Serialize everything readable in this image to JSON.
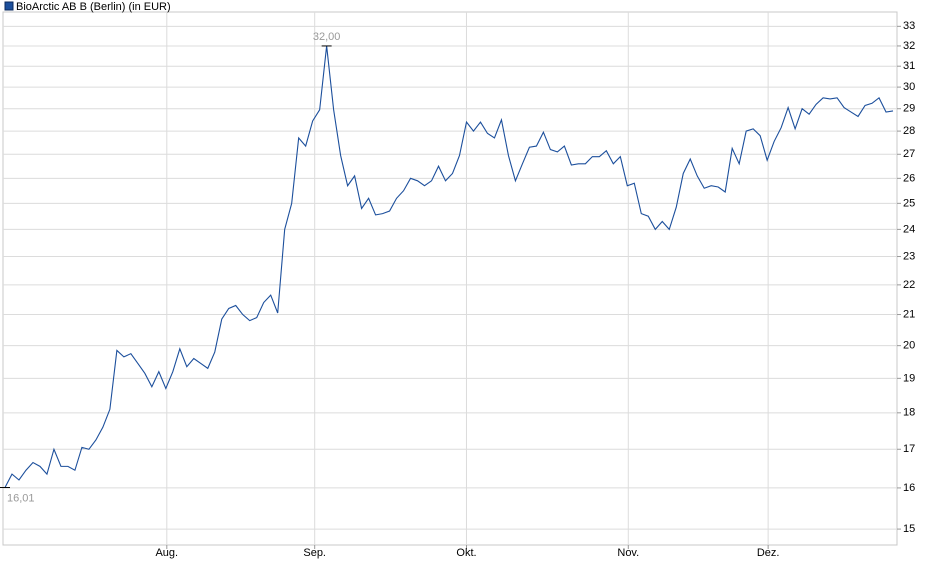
{
  "chart_data": {
    "type": "line",
    "series": [
      {
        "name": "BioArctic AB B (Berlin) (in EUR)",
        "color": "#1c4f9c",
        "values": [
          16.01,
          16.35,
          16.2,
          16.45,
          16.65,
          16.55,
          16.35,
          17.0,
          16.55,
          16.55,
          16.45,
          17.05,
          17.0,
          17.25,
          17.6,
          18.1,
          19.85,
          19.65,
          19.75,
          19.45,
          19.15,
          18.75,
          19.2,
          18.7,
          19.2,
          19.9,
          19.35,
          19.6,
          19.45,
          19.3,
          19.8,
          20.85,
          21.2,
          21.3,
          21.0,
          20.8,
          20.9,
          21.4,
          21.65,
          21.05,
          24.0,
          25.0,
          27.7,
          27.35,
          28.45,
          28.95,
          32.0,
          28.95,
          26.95,
          25.7,
          26.1,
          24.8,
          25.2,
          24.55,
          24.6,
          24.7,
          25.2,
          25.5,
          26.0,
          25.9,
          25.7,
          25.9,
          26.5,
          25.9,
          26.2,
          26.95,
          28.4,
          28.0,
          28.4,
          27.9,
          27.7,
          28.5,
          26.95,
          25.9,
          26.6,
          27.3,
          27.35,
          27.95,
          27.2,
          27.1,
          27.35,
          26.55,
          26.6,
          26.6,
          26.9,
          26.9,
          27.15,
          26.6,
          26.9,
          25.7,
          25.8,
          24.6,
          24.5,
          24.0,
          24.3,
          24.0,
          24.85,
          26.2,
          26.8,
          26.1,
          25.6,
          25.7,
          25.65,
          25.45,
          27.25,
          26.6,
          28.0,
          28.1,
          27.8,
          26.75,
          27.55,
          28.15,
          29.05,
          28.1,
          29.0,
          28.75,
          29.2,
          29.5,
          29.45,
          29.5,
          29.05,
          28.85,
          28.65,
          29.15,
          29.25,
          29.5,
          28.85,
          28.9
        ]
      }
    ],
    "x": [
      0,
      1,
      2,
      3,
      4,
      5,
      6,
      7,
      8,
      9,
      10,
      11,
      12,
      13,
      14,
      15,
      16,
      17,
      18,
      19,
      20,
      21,
      22,
      23,
      24,
      25,
      26,
      27,
      28,
      29,
      30,
      31,
      32,
      33,
      34,
      35,
      36,
      37,
      38,
      39,
      40,
      41,
      42,
      43,
      44,
      45,
      46,
      47,
      48,
      49,
      50,
      51,
      52,
      53,
      54,
      55,
      56,
      57,
      58,
      59,
      60,
      61,
      62,
      63,
      64,
      65,
      66,
      67,
      68,
      69,
      70,
      71,
      72,
      73,
      74,
      75,
      76,
      77,
      78,
      79,
      80,
      81,
      82,
      83,
      84,
      85,
      86,
      87,
      88,
      89,
      90,
      91,
      92,
      93,
      94,
      95,
      96,
      97,
      98,
      99,
      100,
      101,
      102,
      103,
      104,
      105,
      106,
      107,
      108,
      109,
      110,
      111,
      112,
      113,
      114,
      115,
      116,
      117,
      118,
      119,
      120,
      121,
      122,
      123,
      124,
      125,
      126,
      127
    ],
    "xlim": [
      -0.286,
      127.57
    ],
    "xticks": [
      {
        "value": 23.14,
        "label": "Aug."
      },
      {
        "value": 44.29,
        "label": "Sep."
      },
      {
        "value": 66.0,
        "label": "Okt."
      },
      {
        "value": 89.14,
        "label": "Nov."
      },
      {
        "value": 109.14,
        "label": "Dez."
      }
    ],
    "ylim": [
      14.63,
      33.75
    ],
    "yticks": [
      15,
      16,
      17,
      18,
      19,
      20,
      21,
      22,
      23,
      24,
      25,
      26,
      27,
      28,
      29,
      30,
      31,
      32,
      33
    ],
    "log_scale": true,
    "grid": true,
    "annotations": [
      {
        "x": 46,
        "value": 32.0,
        "label": "32,00"
      },
      {
        "x": 0,
        "value": 16.01,
        "label": "16,01"
      }
    ]
  }
}
